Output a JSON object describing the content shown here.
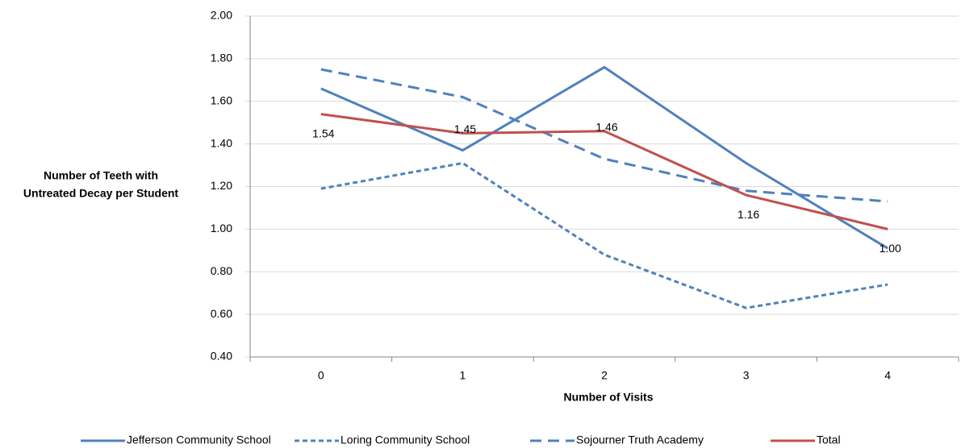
{
  "chart_data": {
    "type": "line",
    "xlabel": "Number of Visits",
    "ylabel": [
      "Number of Teeth with",
      "Untreated Decay per Student"
    ],
    "categories": [
      "0",
      "1",
      "2",
      "3",
      "4"
    ],
    "series": [
      {
        "name": "Jefferson Community School",
        "color": "#4f81bd",
        "line_style": "solid",
        "values": [
          1.66,
          1.37,
          1.76,
          1.31,
          0.91
        ]
      },
      {
        "name": "Loring Community School",
        "color": "#4f81bd",
        "line_style": "dotted",
        "values": [
          1.19,
          1.31,
          0.88,
          0.63,
          0.74
        ]
      },
      {
        "name": "Sojourner Truth Academy",
        "color": "#4f81bd",
        "line_style": "dashed",
        "values": [
          1.75,
          1.62,
          1.33,
          1.18,
          1.13
        ]
      },
      {
        "name": "Total",
        "color": "#c0504d",
        "line_style": "solid",
        "values": [
          1.54,
          1.45,
          1.46,
          1.16,
          1.0
        ],
        "value_labels": [
          "1.54",
          "1.45",
          "1.46",
          "1.16",
          "1.00"
        ]
      }
    ],
    "ylim": [
      0.4,
      2.0
    ],
    "yticks": [
      {
        "value": 0.4,
        "label": "0.40"
      },
      {
        "value": 0.6,
        "label": "0.60"
      },
      {
        "value": 0.8,
        "label": "0.80"
      },
      {
        "value": 1.0,
        "label": "1.00"
      },
      {
        "value": 1.2,
        "label": "1.20"
      },
      {
        "value": 1.4,
        "label": "1.40"
      },
      {
        "value": 1.6,
        "label": "1.60"
      },
      {
        "value": 1.8,
        "label": "1.80"
      },
      {
        "value": 2.0,
        "label": "2.00"
      }
    ],
    "grid": true,
    "legend": "bottom"
  }
}
